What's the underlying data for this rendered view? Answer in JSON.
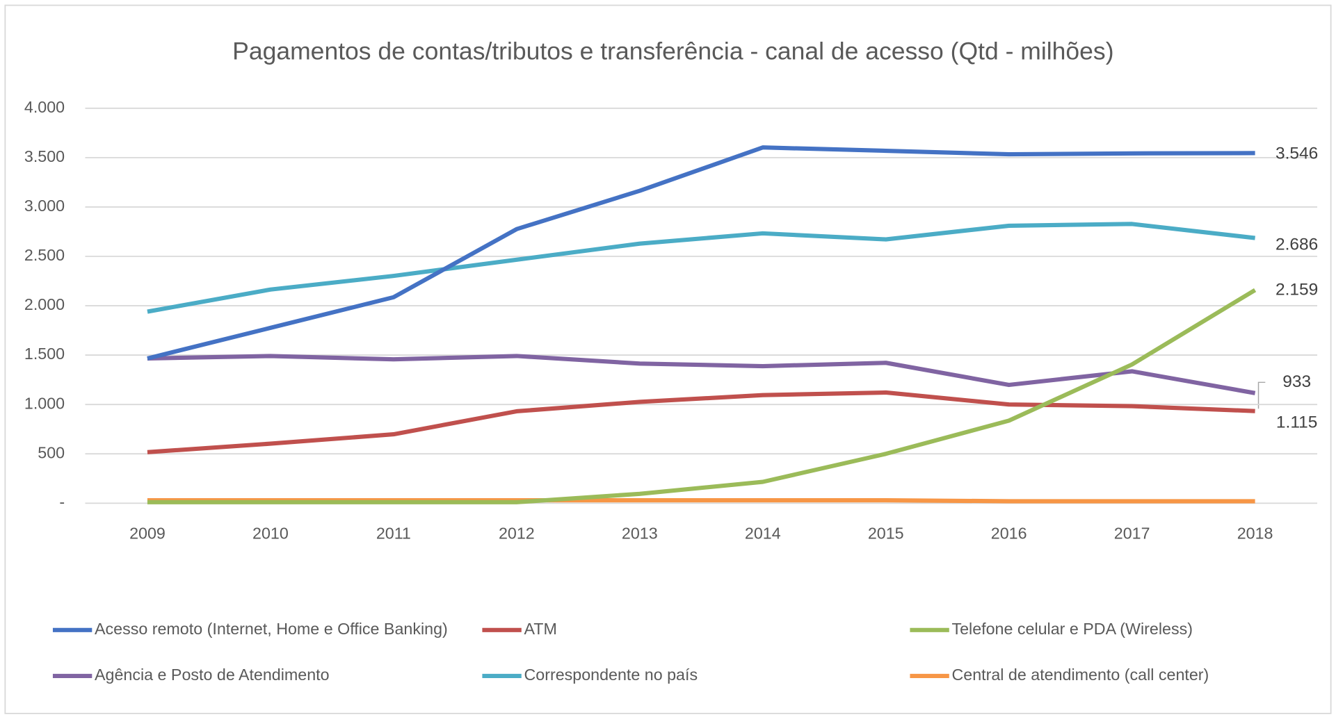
{
  "chart_data": {
    "type": "line",
    "title": "Pagamentos de contas/tributos e transferência - canal de acesso (Qtd - milhões)",
    "categories": [
      "2009",
      "2010",
      "2011",
      "2012",
      "2013",
      "2014",
      "2015",
      "2016",
      "2017",
      "2018"
    ],
    "ylim": [
      0,
      4000
    ],
    "yticks": [
      {
        "value": 0,
        "label": "-"
      },
      500,
      {
        "value": 1000,
        "label": "1.000"
      },
      {
        "value": 1500,
        "label": "1.500"
      },
      {
        "value": 2000,
        "label": "2.000"
      },
      {
        "value": 2500,
        "label": "2.500"
      },
      {
        "value": 3000,
        "label": "3.000"
      },
      {
        "value": 3500,
        "label": "3.500"
      },
      {
        "value": 4000,
        "label": "4.000"
      }
    ],
    "grid": true,
    "legend": "bottom",
    "series": [
      {
        "name": "Acesso remoto (Internet, Home e Office Banking)",
        "color": "#4472c4",
        "values": [
          1466,
          1776,
          2086,
          2776,
          3164,
          3603,
          3569,
          3534,
          3543,
          3546
        ],
        "value_labels": [
          null,
          null,
          null,
          null,
          null,
          null,
          null,
          null,
          null,
          "3.546"
        ]
      },
      {
        "name": "ATM",
        "color": "#c0504d",
        "values": [
          517,
          603,
          698,
          931,
          1026,
          1095,
          1121,
          1000,
          983,
          933
        ],
        "value_labels": [
          null,
          null,
          null,
          null,
          null,
          null,
          null,
          null,
          null,
          "933"
        ]
      },
      {
        "name": "Telefone celular e PDA (Wireless)",
        "color": "#9bbb59",
        "values": [
          10,
          10,
          10,
          10,
          95,
          216,
          500,
          836,
          1405,
          2159
        ],
        "value_labels": [
          null,
          null,
          null,
          null,
          null,
          null,
          null,
          null,
          null,
          "2.159"
        ]
      },
      {
        "name": "Agência e Posto de Atendimento",
        "color": "#8064a2",
        "values": [
          1466,
          1491,
          1457,
          1491,
          1414,
          1388,
          1422,
          1198,
          1336,
          1115
        ],
        "value_labels": [
          null,
          null,
          null,
          null,
          null,
          null,
          null,
          null,
          null,
          "1.115"
        ]
      },
      {
        "name": "Correspondente no país",
        "color": "#4bacc6",
        "values": [
          1940,
          2164,
          2302,
          2466,
          2629,
          2733,
          2672,
          2810,
          2828,
          2686
        ],
        "value_labels": [
          null,
          null,
          null,
          null,
          null,
          null,
          null,
          null,
          null,
          "2.686"
        ]
      },
      {
        "name": "Central de atendimento (call center)",
        "color": "#f79646",
        "values": [
          30,
          30,
          30,
          30,
          30,
          30,
          30,
          20,
          20,
          20
        ]
      }
    ]
  }
}
